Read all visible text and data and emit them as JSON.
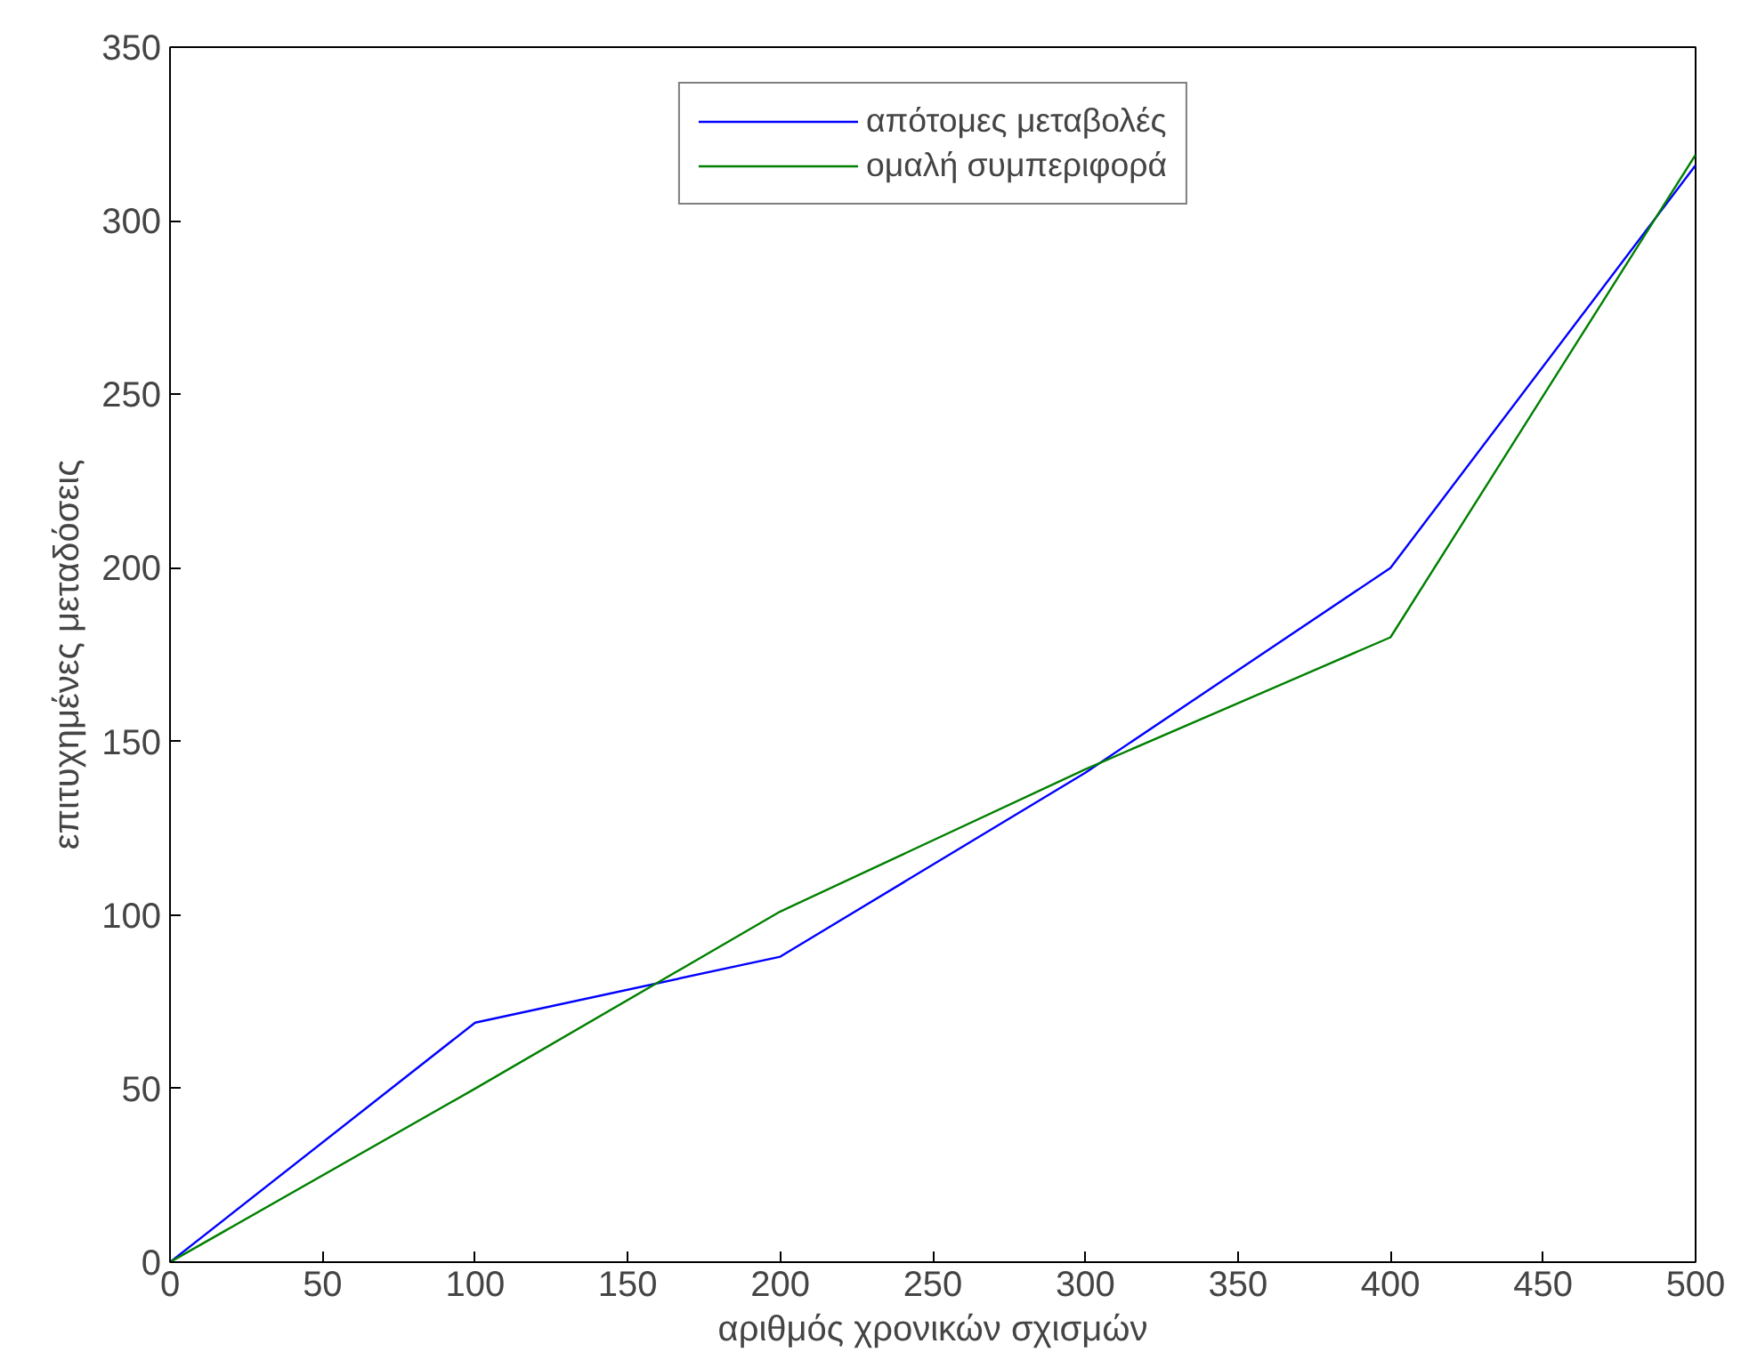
{
  "chart_data": {
    "type": "line",
    "xlabel": "αριθμός χρονικών σχισμών",
    "ylabel": "επιτυχημένες μεταδόσεις",
    "x": [
      0,
      100,
      200,
      300,
      400,
      500
    ],
    "series": [
      {
        "name": "απότομες μεταβολές",
        "color": "#0000ff",
        "values": [
          0,
          69,
          88,
          141,
          200,
          316
        ]
      },
      {
        "name": "ομαλή συμπεριφορά",
        "color": "#008000",
        "values": [
          0,
          50,
          101,
          142,
          180,
          319
        ]
      }
    ],
    "xlim": [
      0,
      500
    ],
    "ylim": [
      0,
      350
    ],
    "xticks": [
      0,
      50,
      100,
      150,
      200,
      250,
      300,
      350,
      400,
      450,
      500
    ],
    "yticks": [
      0,
      50,
      100,
      150,
      200,
      250,
      300,
      350
    ],
    "grid": false,
    "legend": "top",
    "marker": "none",
    "line_style": "solid"
  }
}
